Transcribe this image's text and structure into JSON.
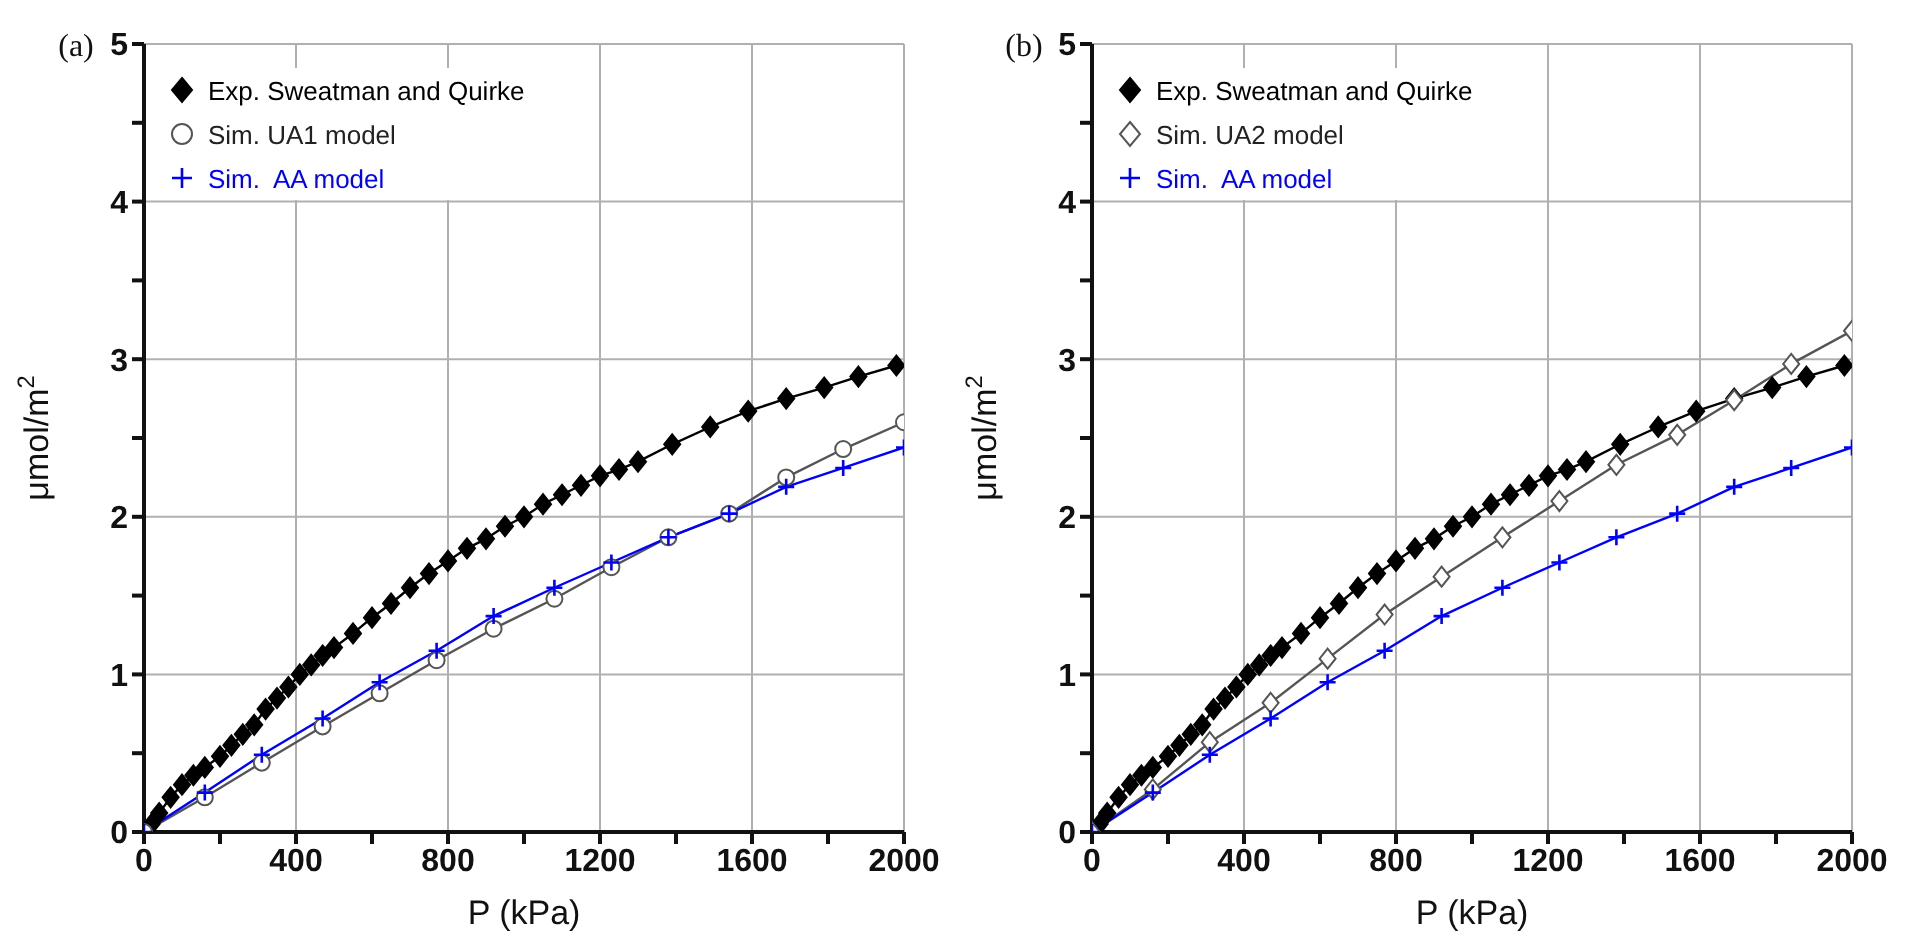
{
  "chart_data": [
    {
      "type": "line",
      "title": "(a)",
      "xlabel": "P (kPa)",
      "ylabel": "μmol/m$^{2}$",
      "xlim": [
        0,
        2000
      ],
      "ylim": [
        0,
        5
      ],
      "xticks": [
        0,
        {
          "value": 200,
          "label": null
        },
        400,
        {
          "value": 600,
          "label": null
        },
        800,
        {
          "value": 1000,
          "label": null
        },
        1200,
        {
          "value": 1400,
          "label": null
        },
        1600,
        {
          "value": 1800,
          "label": null
        },
        2000
      ],
      "yticks": [
        0,
        {
          "value": 0.5,
          "label": null
        },
        1,
        {
          "value": 1.5,
          "label": null
        },
        2,
        {
          "value": 2.5,
          "label": null
        },
        3,
        {
          "value": 3.5,
          "label": null
        },
        4,
        {
          "value": 4.5,
          "label": null
        },
        5
      ],
      "grid": true,
      "legend": "top left",
      "line_style": "solid",
      "series": [
        {
          "name": "Exp. Sweatman and Quirke",
          "color": "#000000",
          "marker": "diamond",
          "x": [
            0,
            20,
            40,
            70,
            100,
            130,
            160,
            200,
            230,
            260,
            290,
            320,
            350,
            380,
            410,
            440,
            470,
            500,
            550,
            600,
            650,
            700,
            750,
            800,
            850,
            900,
            950,
            1000,
            1050,
            1100,
            1150,
            1200,
            1250,
            1300,
            1390,
            1490,
            1590,
            1690,
            1790,
            1880,
            1980
          ],
          "values": [
            0,
            0.05,
            0.12,
            0.22,
            0.3,
            0.36,
            0.41,
            0.48,
            0.55,
            0.62,
            0.68,
            0.78,
            0.85,
            0.92,
            1.0,
            1.06,
            1.12,
            1.17,
            1.26,
            1.36,
            1.45,
            1.55,
            1.64,
            1.72,
            1.8,
            1.86,
            1.94,
            2.0,
            2.08,
            2.14,
            2.2,
            2.26,
            2.3,
            2.35,
            2.46,
            2.57,
            2.67,
            2.75,
            2.82,
            2.89,
            2.96
          ]
        },
        {
          "name": "Sim. UA1 model",
          "color": "#555555",
          "marker": "circle",
          "x": [
            0,
            160,
            310,
            470,
            620,
            770,
            920,
            1080,
            1230,
            1380,
            1540,
            1690,
            1840,
            2000
          ],
          "values": [
            0,
            0.22,
            0.44,
            0.67,
            0.88,
            1.09,
            1.29,
            1.48,
            1.68,
            1.87,
            2.02,
            2.25,
            2.43,
            2.6
          ]
        },
        {
          "name": "Sim.  AA model",
          "color": "#0000ff",
          "marker": "cross",
          "x": [
            0,
            160,
            310,
            470,
            620,
            770,
            920,
            1080,
            1230,
            1380,
            1540,
            1690,
            1840,
            2000
          ],
          "values": [
            0,
            0.25,
            0.49,
            0.72,
            0.95,
            1.15,
            1.37,
            1.55,
            1.71,
            1.87,
            2.02,
            2.19,
            2.31,
            2.44
          ]
        }
      ]
    },
    {
      "type": "line",
      "title": "(b)",
      "xlabel": "P (kPa)",
      "ylabel": "μmol/m$^{2}$",
      "xlim": [
        0,
        2000
      ],
      "ylim": [
        0,
        5
      ],
      "xticks": [
        0,
        {
          "value": 200,
          "label": null
        },
        400,
        {
          "value": 600,
          "label": null
        },
        800,
        {
          "value": 1000,
          "label": null
        },
        1200,
        {
          "value": 1400,
          "label": null
        },
        1600,
        {
          "value": 1800,
          "label": null
        },
        2000
      ],
      "yticks": [
        0,
        {
          "value": 0.5,
          "label": null
        },
        1,
        {
          "value": 1.5,
          "label": null
        },
        2,
        {
          "value": 2.5,
          "label": null
        },
        3,
        {
          "value": 3.5,
          "label": null
        },
        4,
        {
          "value": 4.5,
          "label": null
        },
        5
      ],
      "grid": true,
      "legend": "top left",
      "line_style": "solid",
      "series": [
        {
          "name": "Exp. Sweatman and Quirke",
          "color": "#000000",
          "marker": "diamond",
          "x": [
            0,
            20,
            40,
            70,
            100,
            130,
            160,
            200,
            230,
            260,
            290,
            320,
            350,
            380,
            410,
            440,
            470,
            500,
            550,
            600,
            650,
            700,
            750,
            800,
            850,
            900,
            950,
            1000,
            1050,
            1100,
            1150,
            1200,
            1250,
            1300,
            1390,
            1490,
            1590,
            1690,
            1790,
            1880,
            1980
          ],
          "values": [
            0,
            0.05,
            0.12,
            0.22,
            0.3,
            0.36,
            0.41,
            0.48,
            0.55,
            0.62,
            0.68,
            0.78,
            0.85,
            0.92,
            1.0,
            1.06,
            1.12,
            1.17,
            1.26,
            1.36,
            1.45,
            1.55,
            1.64,
            1.72,
            1.8,
            1.86,
            1.94,
            2.0,
            2.08,
            2.14,
            2.2,
            2.26,
            2.3,
            2.35,
            2.46,
            2.57,
            2.67,
            2.75,
            2.82,
            2.89,
            2.96
          ]
        },
        {
          "name": "Sim. UA2 model",
          "color": "#555555",
          "marker": "diamond",
          "x": [
            0,
            160,
            310,
            470,
            620,
            770,
            920,
            1080,
            1230,
            1380,
            1540,
            1690,
            1840,
            2000
          ],
          "values": [
            0,
            0.27,
            0.57,
            0.82,
            1.1,
            1.38,
            1.62,
            1.87,
            2.1,
            2.33,
            2.52,
            2.74,
            2.97,
            3.18
          ]
        },
        {
          "name": "Sim.  AA model",
          "color": "#0000ff",
          "marker": "cross",
          "x": [
            0,
            160,
            310,
            470,
            620,
            770,
            920,
            1080,
            1230,
            1380,
            1540,
            1690,
            1840,
            2000
          ],
          "values": [
            0,
            0.25,
            0.49,
            0.72,
            0.95,
            1.15,
            1.37,
            1.55,
            1.71,
            1.87,
            2.02,
            2.19,
            2.31,
            2.44
          ]
        }
      ]
    }
  ]
}
